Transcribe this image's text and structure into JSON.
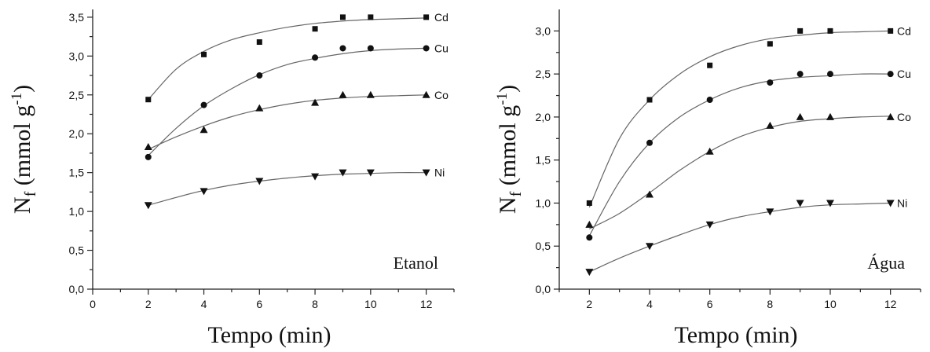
{
  "chart_data": [
    {
      "type": "scatter",
      "panel_label": "Etanol",
      "xlabel": "Tempo (min)",
      "ylabel_main": "N",
      "ylabel_sub": "f",
      "ylabel_rest": " (mmol g",
      "ylabel_sup": "-1",
      "ylabel_close": ")",
      "xlim": [
        0,
        13
      ],
      "ylim": [
        0,
        3.6
      ],
      "xticks": [
        0,
        2,
        4,
        6,
        8,
        10,
        12
      ],
      "yticks": [
        0,
        0.5,
        1.0,
        1.5,
        2.0,
        2.5,
        3.0,
        3.5
      ],
      "xtick_labels": [
        "0",
        "2",
        "4",
        "6",
        "8",
        "10",
        "12"
      ],
      "ytick_labels": [
        "0,0",
        "0,5",
        "1,0",
        "1,5",
        "2,0",
        "2,5",
        "3,0",
        "3,5"
      ],
      "grid": false,
      "series": [
        {
          "name": "Cd",
          "marker": "square",
          "x": [
            2,
            4,
            6,
            8,
            9,
            10,
            12
          ],
          "y": [
            2.44,
            3.02,
            3.18,
            3.35,
            3.5,
            3.5,
            3.5
          ]
        },
        {
          "name": "Cu",
          "marker": "circle",
          "x": [
            2,
            4,
            6,
            8,
            9,
            10,
            12
          ],
          "y": [
            1.7,
            2.37,
            2.75,
            2.98,
            3.1,
            3.1,
            3.1
          ]
        },
        {
          "name": "Co",
          "marker": "triangle-up",
          "x": [
            2,
            4,
            6,
            8,
            9,
            10,
            12
          ],
          "y": [
            1.83,
            2.05,
            2.33,
            2.4,
            2.5,
            2.5,
            2.5
          ]
        },
        {
          "name": "Ni",
          "marker": "triangle-down",
          "x": [
            2,
            4,
            6,
            8,
            9,
            10,
            12
          ],
          "y": [
            1.08,
            1.26,
            1.39,
            1.45,
            1.5,
            1.5,
            1.5
          ]
        }
      ],
      "fits": [
        {
          "series": "Cd",
          "x": [
            2,
            3,
            4,
            5,
            6,
            7,
            8,
            9,
            10,
            11,
            12
          ],
          "y": [
            2.44,
            2.83,
            3.06,
            3.21,
            3.3,
            3.37,
            3.42,
            3.45,
            3.47,
            3.48,
            3.49
          ]
        },
        {
          "series": "Cu",
          "x": [
            2,
            3,
            4,
            5,
            6,
            7,
            8,
            9,
            10,
            11,
            12
          ],
          "y": [
            1.72,
            2.07,
            2.36,
            2.58,
            2.76,
            2.89,
            2.97,
            3.03,
            3.07,
            3.09,
            3.1
          ]
        },
        {
          "series": "Co",
          "x": [
            2,
            3,
            4,
            5,
            6,
            7,
            8,
            9,
            10,
            11,
            12
          ],
          "y": [
            1.8,
            1.96,
            2.1,
            2.22,
            2.31,
            2.38,
            2.43,
            2.46,
            2.48,
            2.49,
            2.5
          ]
        },
        {
          "series": "Ni",
          "x": [
            2,
            3,
            4,
            5,
            6,
            7,
            8,
            9,
            10,
            11,
            12
          ],
          "y": [
            1.08,
            1.18,
            1.27,
            1.34,
            1.39,
            1.43,
            1.46,
            1.48,
            1.49,
            1.5,
            1.5
          ]
        }
      ]
    },
    {
      "type": "scatter",
      "panel_label": "Água",
      "xlabel": "Tempo (min)",
      "ylabel_main": "N",
      "ylabel_sub": "f",
      "ylabel_rest": " (mmol g",
      "ylabel_sup": "-1",
      "ylabel_close": ")",
      "xlim": [
        1,
        13
      ],
      "ylim": [
        0,
        3.25
      ],
      "xticks": [
        2,
        4,
        6,
        8,
        10,
        12
      ],
      "yticks": [
        0,
        0.5,
        1.0,
        1.5,
        2.0,
        2.5,
        3.0
      ],
      "xtick_labels": [
        "2",
        "4",
        "6",
        "8",
        "10",
        "12"
      ],
      "ytick_labels": [
        "0,0",
        "0,5",
        "1,0",
        "1,5",
        "2,0",
        "2,5",
        "3,0"
      ],
      "grid": false,
      "series": [
        {
          "name": "Cd",
          "marker": "square",
          "x": [
            2,
            4,
            6,
            8,
            9,
            10,
            12
          ],
          "y": [
            1.0,
            2.2,
            2.6,
            2.85,
            3.0,
            3.0,
            3.0
          ]
        },
        {
          "name": "Cu",
          "marker": "circle",
          "x": [
            2,
            4,
            6,
            8,
            9,
            10,
            12
          ],
          "y": [
            0.6,
            1.7,
            2.2,
            2.4,
            2.5,
            2.5,
            2.5
          ]
        },
        {
          "name": "Co",
          "marker": "triangle-up",
          "x": [
            2,
            4,
            6,
            8,
            9,
            10,
            12
          ],
          "y": [
            0.75,
            1.1,
            1.6,
            1.9,
            2.0,
            2.0,
            2.0
          ]
        },
        {
          "name": "Ni",
          "marker": "triangle-down",
          "x": [
            2,
            4,
            6,
            8,
            9,
            10,
            12
          ],
          "y": [
            0.2,
            0.5,
            0.75,
            0.9,
            1.0,
            1.0,
            1.0
          ]
        }
      ],
      "fits": [
        {
          "series": "Cd",
          "x": [
            2,
            3,
            4,
            5,
            6,
            7,
            8,
            9,
            10,
            11,
            12
          ],
          "y": [
            0.95,
            1.75,
            2.2,
            2.5,
            2.7,
            2.83,
            2.91,
            2.95,
            2.98,
            2.99,
            3.0
          ]
        },
        {
          "series": "Cu",
          "x": [
            2,
            3,
            4,
            5,
            6,
            7,
            8,
            9,
            10,
            11,
            12
          ],
          "y": [
            0.62,
            1.25,
            1.7,
            2.0,
            2.2,
            2.34,
            2.42,
            2.46,
            2.48,
            2.5,
            2.5
          ]
        },
        {
          "series": "Co",
          "x": [
            2,
            3,
            4,
            5,
            6,
            7,
            8,
            9,
            10,
            11,
            12
          ],
          "y": [
            0.7,
            0.88,
            1.12,
            1.38,
            1.6,
            1.77,
            1.88,
            1.95,
            1.98,
            2.0,
            2.01
          ]
        },
        {
          "series": "Ni",
          "x": [
            2,
            3,
            4,
            5,
            6,
            7,
            8,
            9,
            10,
            11,
            12
          ],
          "y": [
            0.2,
            0.36,
            0.5,
            0.63,
            0.75,
            0.84,
            0.9,
            0.95,
            0.98,
            0.99,
            1.0
          ]
        }
      ]
    }
  ]
}
